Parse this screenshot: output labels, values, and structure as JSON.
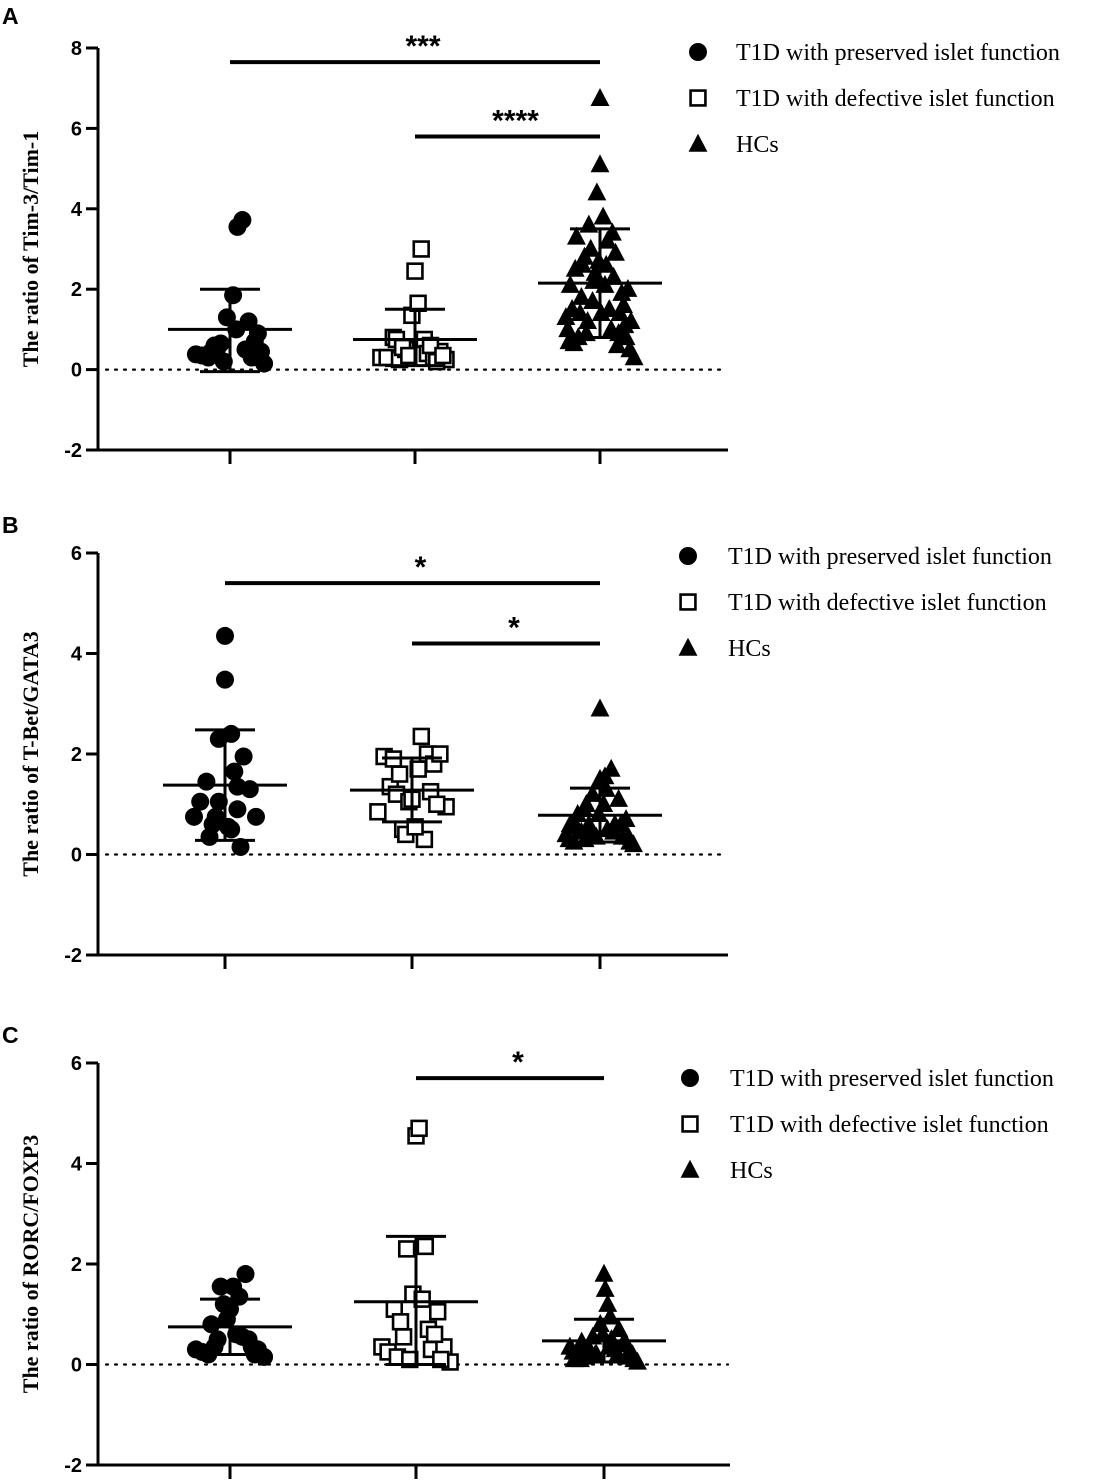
{
  "chart_data": [
    {
      "type": "scatter",
      "panel": "A",
      "ylabel": "The ratio of Tim-3/Tim-1",
      "xlabel": "",
      "ylim": [
        -2,
        8
      ],
      "yticks": [
        "-2",
        "0",
        "2",
        "4",
        "6",
        "8"
      ],
      "reference_line_y": 0,
      "legend": [
        "T1D with preserved islet function",
        "T1D with defective islet function",
        "HCs"
      ],
      "groups": [
        {
          "name": "T1D with preserved islet function",
          "marker": "circle",
          "mean": 1.0,
          "sd_low": -0.05,
          "sd_high": 2.0,
          "points": [
            [
              -0.55,
              0.38
            ],
            [
              -0.45,
              0.35
            ],
            [
              -0.35,
              0.3
            ],
            [
              -0.25,
              0.6
            ],
            [
              -0.15,
              0.65
            ],
            [
              -0.05,
              1.3
            ],
            [
              0.05,
              1.85
            ],
            [
              0.12,
              3.55
            ],
            [
              0.2,
              3.72
            ],
            [
              0.25,
              0.5
            ],
            [
              0.35,
              0.3
            ],
            [
              0.45,
              0.9
            ],
            [
              0.5,
              0.45
            ],
            [
              -0.2,
              0.55
            ],
            [
              -0.1,
              0.2
            ],
            [
              0.1,
              1.0
            ],
            [
              0.3,
              1.2
            ],
            [
              0.4,
              0.7
            ],
            [
              0.55,
              0.15
            ],
            [
              -0.3,
              0.45
            ]
          ]
        },
        {
          "name": "T1D with defective islet function",
          "marker": "square",
          "mean": 0.75,
          "sd_low": 0.1,
          "sd_high": 1.5,
          "points": [
            [
              -0.55,
              0.3
            ],
            [
              -0.45,
              0.3
            ],
            [
              -0.35,
              0.8
            ],
            [
              -0.25,
              0.25
            ],
            [
              -0.15,
              0.5
            ],
            [
              -0.05,
              1.35
            ],
            [
              0.0,
              2.45
            ],
            [
              0.05,
              1.65
            ],
            [
              0.1,
              3.0
            ],
            [
              0.15,
              0.75
            ],
            [
              0.2,
              0.4
            ],
            [
              0.3,
              0.3
            ],
            [
              0.4,
              0.45
            ],
            [
              0.5,
              0.25
            ],
            [
              -0.3,
              0.75
            ],
            [
              -0.2,
              0.55
            ],
            [
              -0.1,
              0.35
            ],
            [
              0.25,
              0.6
            ],
            [
              0.35,
              0.2
            ],
            [
              0.45,
              0.35
            ]
          ]
        },
        {
          "name": "HCs",
          "marker": "triangle",
          "mean": 2.15,
          "sd_low": 0.8,
          "sd_high": 3.5,
          "points": [
            [
              -0.55,
              1.3
            ],
            [
              -0.5,
              0.7
            ],
            [
              -0.45,
              1.5
            ],
            [
              -0.4,
              2.5
            ],
            [
              -0.35,
              0.8
            ],
            [
              -0.3,
              1.8
            ],
            [
              -0.25,
              2.8
            ],
            [
              -0.2,
              1.2
            ],
            [
              -0.15,
              3.0
            ],
            [
              -0.1,
              2.2
            ],
            [
              -0.05,
              4.4
            ],
            [
              0.0,
              6.75
            ],
            [
              0.0,
              5.1
            ],
            [
              0.05,
              3.8
            ],
            [
              0.1,
              2.6
            ],
            [
              0.15,
              1.5
            ],
            [
              0.2,
              3.4
            ],
            [
              0.25,
              2.9
            ],
            [
              0.3,
              0.9
            ],
            [
              0.35,
              1.9
            ],
            [
              0.4,
              1.1
            ],
            [
              0.45,
              2.0
            ],
            [
              0.5,
              1.2
            ],
            [
              0.55,
              0.3
            ],
            [
              -0.52,
              1.0
            ],
            [
              -0.42,
              0.65
            ],
            [
              -0.32,
              1.4
            ],
            [
              -0.22,
              0.9
            ],
            [
              -0.12,
              1.7
            ],
            [
              -0.02,
              2.7
            ],
            [
              0.08,
              2.1
            ],
            [
              0.18,
              1.0
            ],
            [
              0.28,
              0.6
            ],
            [
              0.38,
              1.6
            ],
            [
              0.48,
              0.5
            ],
            [
              -0.48,
              2.1
            ],
            [
              -0.38,
              3.3
            ],
            [
              -0.28,
              2.6
            ],
            [
              -0.18,
              3.6
            ],
            [
              -0.08,
              2.4
            ],
            [
              0.02,
              1.4
            ],
            [
              0.12,
              3.2
            ],
            [
              0.22,
              2.3
            ],
            [
              0.32,
              1.4
            ],
            [
              0.42,
              0.8
            ]
          ]
        }
      ],
      "significance": [
        {
          "from": 0,
          "to": 2,
          "label": "***",
          "y": 7.65
        },
        {
          "from": 1,
          "to": 2,
          "label": "****",
          "y": 5.8
        }
      ]
    },
    {
      "type": "scatter",
      "panel": "B",
      "ylabel": "The ratio of T-Bet/GATA3",
      "xlabel": "",
      "ylim": [
        -2,
        6
      ],
      "yticks": [
        "-2",
        "0",
        "2",
        "4",
        "6"
      ],
      "reference_line_y": 0,
      "legend": [
        "T1D with preserved islet function",
        "T1D with defective islet function",
        "HCs"
      ],
      "groups": [
        {
          "name": "T1D with preserved islet function",
          "marker": "circle",
          "mean": 1.38,
          "sd_low": 0.28,
          "sd_high": 2.48,
          "points": [
            [
              -0.5,
              0.75
            ],
            [
              -0.4,
              1.05
            ],
            [
              -0.3,
              1.45
            ],
            [
              -0.2,
              0.6
            ],
            [
              -0.1,
              1.05
            ],
            [
              0.0,
              3.48
            ],
            [
              0.0,
              4.35
            ],
            [
              -0.1,
              2.3
            ],
            [
              0.1,
              2.4
            ],
            [
              0.15,
              1.65
            ],
            [
              0.2,
              1.35
            ],
            [
              0.3,
              1.95
            ],
            [
              0.4,
              1.3
            ],
            [
              0.5,
              0.75
            ],
            [
              -0.25,
              0.35
            ],
            [
              -0.15,
              0.75
            ],
            [
              0.1,
              0.5
            ],
            [
              0.2,
              0.9
            ],
            [
              0.25,
              0.15
            ],
            [
              0.05,
              0.55
            ]
          ]
        },
        {
          "name": "T1D with defective islet function",
          "marker": "square",
          "mean": 1.28,
          "sd_low": 0.65,
          "sd_high": 1.92,
          "points": [
            [
              -0.55,
              0.85
            ],
            [
              -0.45,
              1.95
            ],
            [
              -0.35,
              1.35
            ],
            [
              -0.25,
              1.2
            ],
            [
              -0.15,
              0.5
            ],
            [
              -0.05,
              1.05
            ],
            [
              0.0,
              1.1
            ],
            [
              0.1,
              1.7
            ],
            [
              0.15,
              2.35
            ],
            [
              0.2,
              0.3
            ],
            [
              0.25,
              2.0
            ],
            [
              0.35,
              1.8
            ],
            [
              0.45,
              2.0
            ],
            [
              0.55,
              0.95
            ],
            [
              -0.3,
              1.9
            ],
            [
              -0.2,
              1.6
            ],
            [
              -0.1,
              0.4
            ],
            [
              0.05,
              0.55
            ],
            [
              0.3,
              1.25
            ],
            [
              0.4,
              1.0
            ]
          ]
        },
        {
          "name": "HCs",
          "marker": "triangle",
          "mean": 0.78,
          "sd_low": 0.25,
          "sd_high": 1.32,
          "points": [
            [
              -0.55,
              0.4
            ],
            [
              -0.48,
              0.6
            ],
            [
              -0.42,
              0.25
            ],
            [
              -0.36,
              0.8
            ],
            [
              -0.3,
              0.45
            ],
            [
              -0.24,
              0.3
            ],
            [
              -0.18,
              0.6
            ],
            [
              -0.12,
              1.2
            ],
            [
              -0.06,
              0.35
            ],
            [
              0.0,
              2.9
            ],
            [
              0.0,
              1.5
            ],
            [
              0.06,
              1.0
            ],
            [
              0.12,
              0.5
            ],
            [
              0.18,
              1.7
            ],
            [
              0.24,
              0.6
            ],
            [
              0.3,
              1.1
            ],
            [
              0.36,
              0.35
            ],
            [
              0.42,
              0.7
            ],
            [
              0.48,
              0.25
            ],
            [
              0.54,
              0.2
            ],
            [
              -0.5,
              0.3
            ],
            [
              -0.38,
              0.55
            ],
            [
              -0.26,
              0.9
            ],
            [
              -0.14,
              0.4
            ],
            [
              -0.02,
              0.8
            ],
            [
              0.1,
              1.3
            ],
            [
              0.22,
              0.45
            ],
            [
              0.34,
              0.6
            ],
            [
              0.46,
              0.35
            ],
            [
              -0.22,
              1.0
            ],
            [
              0.08,
              1.55
            ]
          ]
        }
      ],
      "significance": [
        {
          "from": 0,
          "to": 2,
          "label": "*",
          "y": 5.4
        },
        {
          "from": 1,
          "to": 2,
          "label": "*",
          "y": 4.2
        }
      ]
    },
    {
      "type": "scatter",
      "panel": "C",
      "ylabel": "The ratio of RORC/FOXP3",
      "xlabel": "",
      "ylim": [
        -2,
        6
      ],
      "yticks": [
        "-2",
        "0",
        "2",
        "4",
        "6"
      ],
      "reference_line_y": 0,
      "legend": [
        "T1D with preserved islet function",
        "T1D with defective islet function",
        "HCs"
      ],
      "groups": [
        {
          "name": "T1D with preserved islet function",
          "marker": "circle",
          "mean": 0.75,
          "sd_low": 0.2,
          "sd_high": 1.3,
          "points": [
            [
              -0.55,
              0.3
            ],
            [
              -0.45,
              0.25
            ],
            [
              -0.35,
              0.2
            ],
            [
              -0.25,
              0.35
            ],
            [
              -0.15,
              1.55
            ],
            [
              -0.05,
              0.9
            ],
            [
              0.0,
              1.1
            ],
            [
              0.05,
              1.55
            ],
            [
              0.1,
              0.6
            ],
            [
              0.15,
              1.35
            ],
            [
              0.2,
              0.55
            ],
            [
              0.25,
              1.8
            ],
            [
              0.35,
              0.35
            ],
            [
              0.45,
              0.3
            ],
            [
              0.55,
              0.15
            ],
            [
              -0.3,
              0.8
            ],
            [
              -0.2,
              0.5
            ],
            [
              -0.1,
              1.2
            ],
            [
              0.3,
              0.5
            ],
            [
              0.4,
              0.2
            ]
          ]
        },
        {
          "name": "T1D with defective islet function",
          "marker": "square",
          "mean": 1.25,
          "sd_low": 0.0,
          "sd_high": 2.55,
          "points": [
            [
              -0.55,
              0.35
            ],
            [
              -0.45,
              0.25
            ],
            [
              -0.35,
              1.1
            ],
            [
              -0.25,
              0.85
            ],
            [
              -0.15,
              2.3
            ],
            [
              -0.05,
              1.4
            ],
            [
              0.0,
              4.55
            ],
            [
              0.05,
              4.7
            ],
            [
              0.1,
              1.3
            ],
            [
              0.15,
              2.35
            ],
            [
              0.2,
              0.7
            ],
            [
              0.25,
              0.3
            ],
            [
              0.35,
              1.05
            ],
            [
              0.45,
              0.35
            ],
            [
              0.55,
              0.05
            ],
            [
              -0.3,
              0.15
            ],
            [
              -0.2,
              0.55
            ],
            [
              -0.1,
              0.1
            ],
            [
              0.3,
              0.6
            ],
            [
              0.4,
              0.1
            ]
          ]
        },
        {
          "name": "HCs",
          "marker": "triangle",
          "mean": 0.47,
          "sd_low": 0.05,
          "sd_high": 0.9,
          "points": [
            [
              -0.55,
              0.35
            ],
            [
              -0.48,
              0.1
            ],
            [
              -0.42,
              0.2
            ],
            [
              -0.36,
              0.45
            ],
            [
              -0.3,
              0.15
            ],
            [
              -0.24,
              0.3
            ],
            [
              -0.18,
              0.55
            ],
            [
              -0.12,
              0.2
            ],
            [
              -0.06,
              0.8
            ],
            [
              0.0,
              1.8
            ],
            [
              0.02,
              1.5
            ],
            [
              0.06,
              1.2
            ],
            [
              0.12,
              0.5
            ],
            [
              0.18,
              0.3
            ],
            [
              0.24,
              0.7
            ],
            [
              0.3,
              0.4
            ],
            [
              0.36,
              0.15
            ],
            [
              0.42,
              0.25
            ],
            [
              0.48,
              0.1
            ],
            [
              0.54,
              0.05
            ],
            [
              -0.5,
              0.25
            ],
            [
              -0.38,
              0.1
            ],
            [
              -0.26,
              0.35
            ],
            [
              -0.14,
              0.2
            ],
            [
              -0.02,
              0.6
            ],
            [
              0.1,
              0.95
            ],
            [
              0.22,
              0.2
            ],
            [
              0.34,
              0.45
            ],
            [
              0.46,
              0.2
            ],
            [
              0.08,
              0.35
            ]
          ]
        }
      ],
      "significance": [
        {
          "from": 1,
          "to": 2,
          "label": "*",
          "y": 5.7
        }
      ]
    }
  ]
}
